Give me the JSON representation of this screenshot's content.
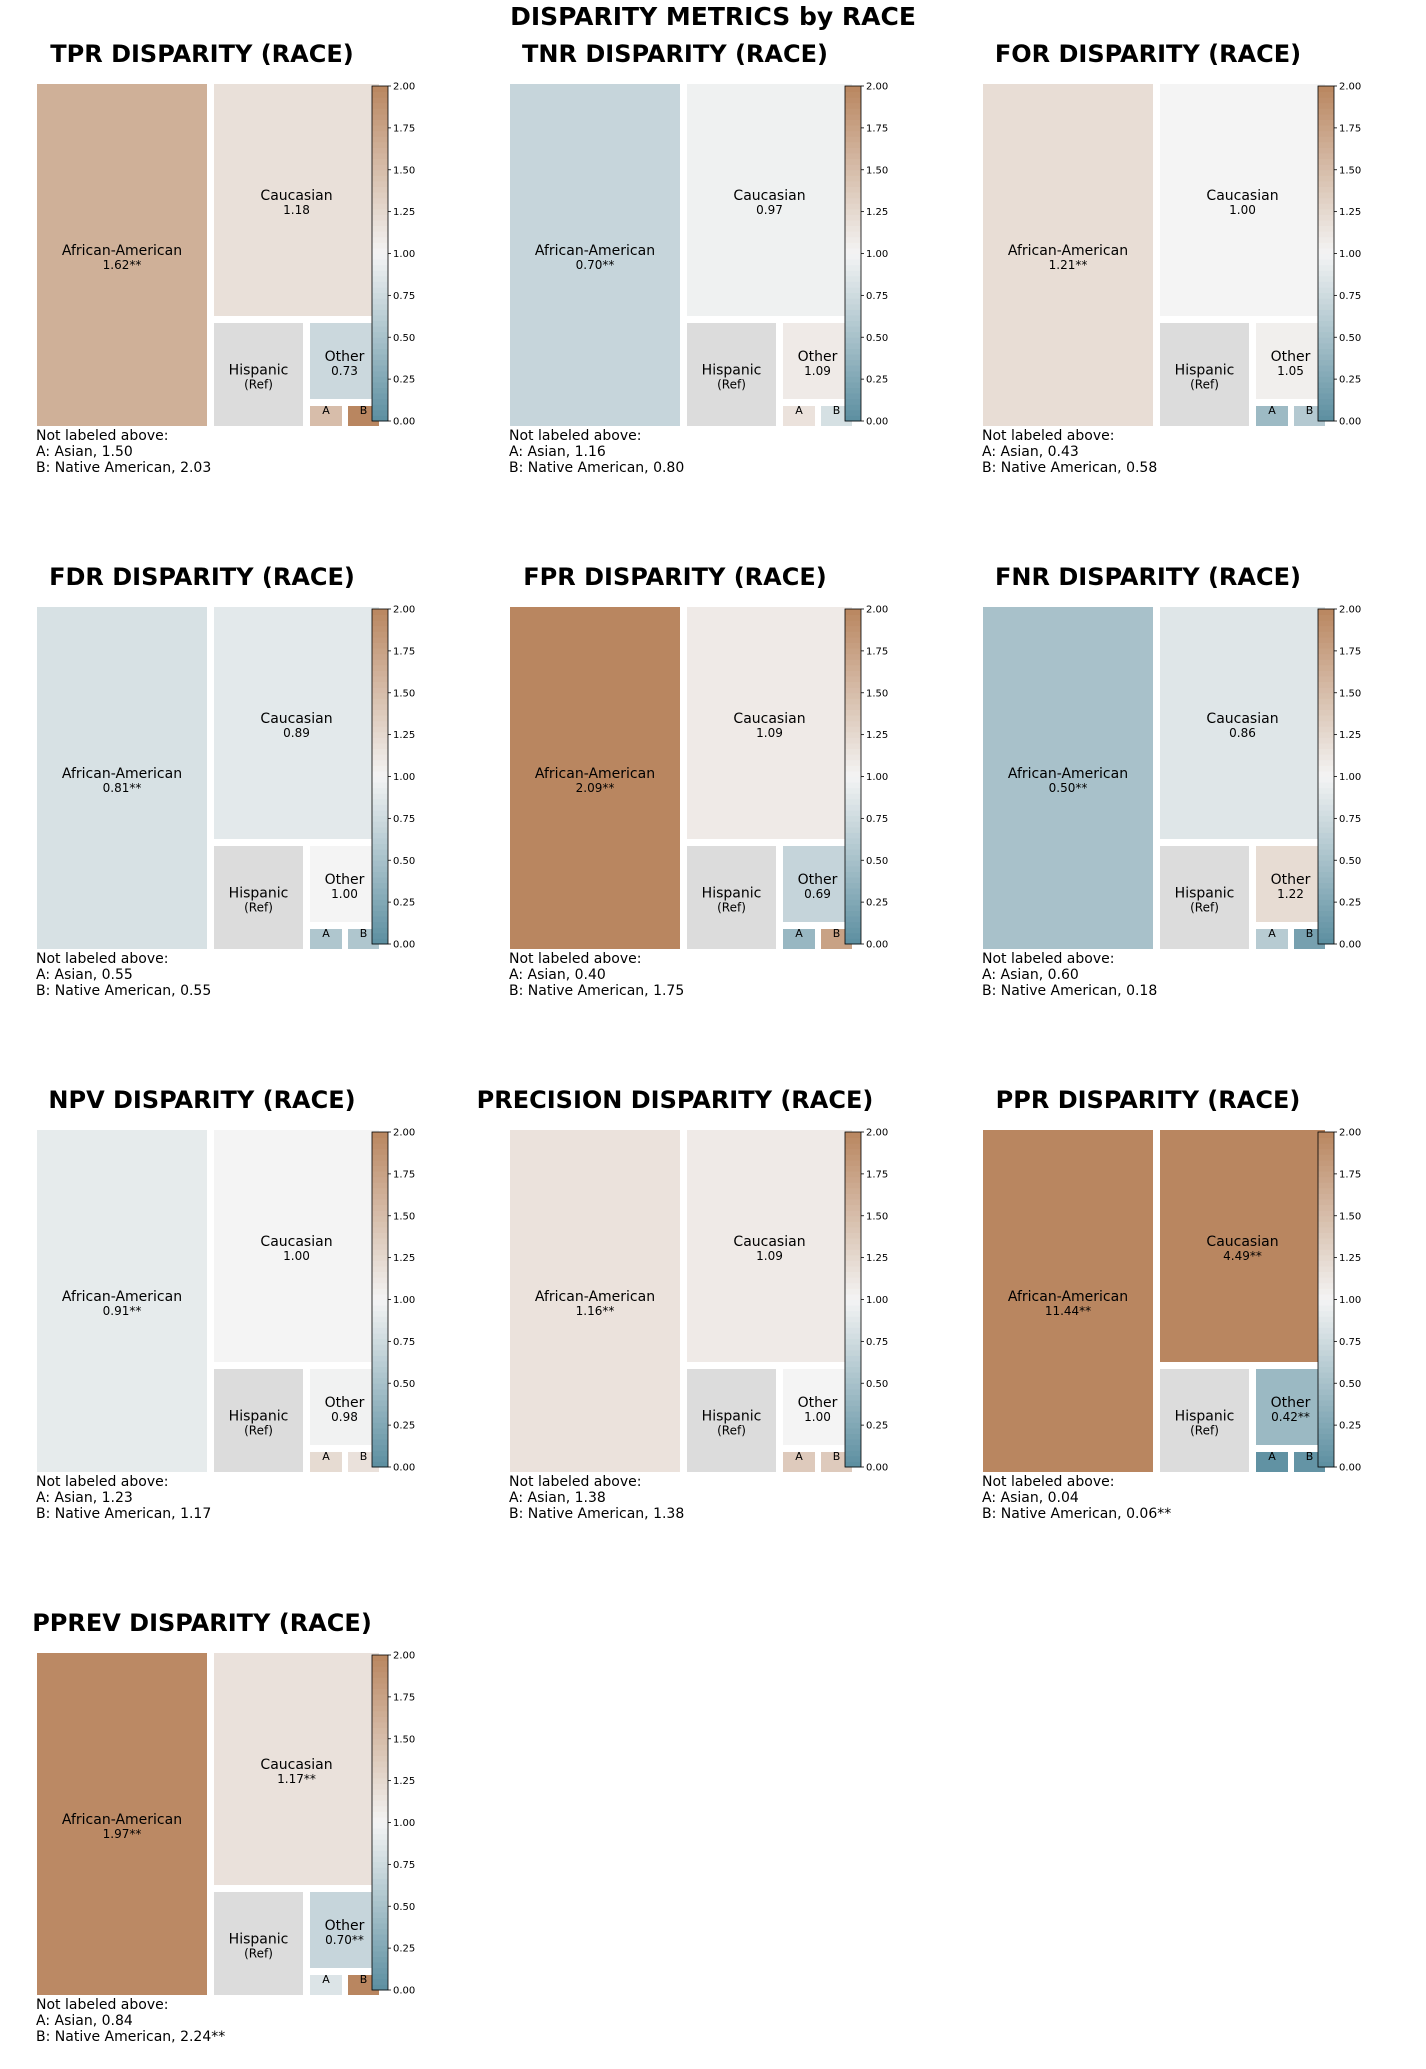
{
  "title": "DISPARITY METRICS by RACE",
  "colorbar": {
    "ticks": [
      "0.00",
      "0.25",
      "0.50",
      "0.75",
      "1.00",
      "1.25",
      "1.50",
      "1.75",
      "2.00"
    ],
    "range": [
      0,
      2
    ],
    "low_color": "#5b8ea0",
    "mid_color": "#f4f4f4",
    "high_color": "#b98660"
  },
  "colors": {
    "reference_fill": "#dcdcdc"
  },
  "chart_data": [
    {
      "type": "treemap",
      "title": "TPR DISPARITY (RACE)",
      "tiles": [
        {
          "name": "African-American",
          "value_label": "1.62**",
          "value": 1.62
        },
        {
          "name": "Caucasian",
          "value_label": "1.18",
          "value": 1.18
        },
        {
          "name": "Hispanic",
          "value_label": "(Ref)",
          "value": null
        },
        {
          "name": "Other",
          "value_label": "0.73",
          "value": 0.73
        },
        {
          "name": "A",
          "value_label": "",
          "value": 1.5
        },
        {
          "name": "B",
          "value_label": "",
          "value": 2.03
        }
      ],
      "notes": [
        "Not labeled above:",
        "A: Asian, 1.50",
        "B: Native American, 2.03"
      ]
    },
    {
      "type": "treemap",
      "title": "TNR DISPARITY (RACE)",
      "tiles": [
        {
          "name": "African-American",
          "value_label": "0.70**",
          "value": 0.7
        },
        {
          "name": "Caucasian",
          "value_label": "0.97",
          "value": 0.97
        },
        {
          "name": "Hispanic",
          "value_label": "(Ref)",
          "value": null
        },
        {
          "name": "Other",
          "value_label": "1.09",
          "value": 1.09
        },
        {
          "name": "A",
          "value_label": "",
          "value": 1.16
        },
        {
          "name": "B",
          "value_label": "",
          "value": 0.8
        }
      ],
      "notes": [
        "Not labeled above:",
        "A: Asian, 1.16",
        "B: Native American, 0.80"
      ]
    },
    {
      "type": "treemap",
      "title": "FOR DISPARITY (RACE)",
      "tiles": [
        {
          "name": "African-American",
          "value_label": "1.21**",
          "value": 1.21
        },
        {
          "name": "Caucasian",
          "value_label": "1.00",
          "value": 1.0
        },
        {
          "name": "Hispanic",
          "value_label": "(Ref)",
          "value": null
        },
        {
          "name": "Other",
          "value_label": "1.05",
          "value": 1.05
        },
        {
          "name": "A",
          "value_label": "",
          "value": 0.43
        },
        {
          "name": "B",
          "value_label": "",
          "value": 0.58
        }
      ],
      "notes": [
        "Not labeled above:",
        "A: Asian, 0.43",
        "B: Native American, 0.58"
      ]
    },
    {
      "type": "treemap",
      "title": "FDR DISPARITY (RACE)",
      "tiles": [
        {
          "name": "African-American",
          "value_label": "0.81**",
          "value": 0.81
        },
        {
          "name": "Caucasian",
          "value_label": "0.89",
          "value": 0.89
        },
        {
          "name": "Hispanic",
          "value_label": "(Ref)",
          "value": null
        },
        {
          "name": "Other",
          "value_label": "1.00",
          "value": 1.0
        },
        {
          "name": "A",
          "value_label": "",
          "value": 0.55
        },
        {
          "name": "B",
          "value_label": "",
          "value": 0.55
        }
      ],
      "notes": [
        "Not labeled above:",
        "A: Asian, 0.55",
        "B: Native American, 0.55"
      ]
    },
    {
      "type": "treemap",
      "title": "FPR DISPARITY (RACE)",
      "tiles": [
        {
          "name": "African-American",
          "value_label": "2.09**",
          "value": 2.09
        },
        {
          "name": "Caucasian",
          "value_label": "1.09",
          "value": 1.09
        },
        {
          "name": "Hispanic",
          "value_label": "(Ref)",
          "value": null
        },
        {
          "name": "Other",
          "value_label": "0.69",
          "value": 0.69
        },
        {
          "name": "A",
          "value_label": "",
          "value": 0.4
        },
        {
          "name": "B",
          "value_label": "",
          "value": 1.75
        }
      ],
      "notes": [
        "Not labeled above:",
        "A: Asian, 0.40",
        "B: Native American, 1.75"
      ]
    },
    {
      "type": "treemap",
      "title": "FNR DISPARITY (RACE)",
      "tiles": [
        {
          "name": "African-American",
          "value_label": "0.50**",
          "value": 0.5
        },
        {
          "name": "Caucasian",
          "value_label": "0.86",
          "value": 0.86
        },
        {
          "name": "Hispanic",
          "value_label": "(Ref)",
          "value": null
        },
        {
          "name": "Other",
          "value_label": "1.22",
          "value": 1.22
        },
        {
          "name": "A",
          "value_label": "",
          "value": 0.6
        },
        {
          "name": "B",
          "value_label": "",
          "value": 0.18
        }
      ],
      "notes": [
        "Not labeled above:",
        "A: Asian, 0.60",
        "B: Native American, 0.18"
      ]
    },
    {
      "type": "treemap",
      "title": "NPV DISPARITY (RACE)",
      "tiles": [
        {
          "name": "African-American",
          "value_label": "0.91**",
          "value": 0.91
        },
        {
          "name": "Caucasian",
          "value_label": "1.00",
          "value": 1.0
        },
        {
          "name": "Hispanic",
          "value_label": "(Ref)",
          "value": null
        },
        {
          "name": "Other",
          "value_label": "0.98",
          "value": 0.98
        },
        {
          "name": "A",
          "value_label": "",
          "value": 1.23
        },
        {
          "name": "B",
          "value_label": "",
          "value": 1.17
        }
      ],
      "notes": [
        "Not labeled above:",
        "A: Asian, 1.23",
        "B: Native American, 1.17"
      ]
    },
    {
      "type": "treemap",
      "title": "PRECISION DISPARITY (RACE)",
      "tiles": [
        {
          "name": "African-American",
          "value_label": "1.16**",
          "value": 1.16
        },
        {
          "name": "Caucasian",
          "value_label": "1.09",
          "value": 1.09
        },
        {
          "name": "Hispanic",
          "value_label": "(Ref)",
          "value": null
        },
        {
          "name": "Other",
          "value_label": "1.00",
          "value": 1.0
        },
        {
          "name": "A",
          "value_label": "",
          "value": 1.38
        },
        {
          "name": "B",
          "value_label": "",
          "value": 1.38
        }
      ],
      "notes": [
        "Not labeled above:",
        "A: Asian, 1.38",
        "B: Native American, 1.38"
      ]
    },
    {
      "type": "treemap",
      "title": "PPR DISPARITY (RACE)",
      "tiles": [
        {
          "name": "African-American",
          "value_label": "11.44**",
          "value": 11.44
        },
        {
          "name": "Caucasian",
          "value_label": "4.49**",
          "value": 4.49
        },
        {
          "name": "Hispanic",
          "value_label": "(Ref)",
          "value": null
        },
        {
          "name": "Other",
          "value_label": "0.42**",
          "value": 0.42
        },
        {
          "name": "A",
          "value_label": "",
          "value": 0.04
        },
        {
          "name": "B",
          "value_label": "",
          "value": 0.06
        }
      ],
      "notes": [
        "Not labeled above:",
        "A: Asian, 0.04",
        "B: Native American, 0.06**"
      ]
    },
    {
      "type": "treemap",
      "title": "PPREV DISPARITY (RACE)",
      "tiles": [
        {
          "name": "African-American",
          "value_label": "1.97**",
          "value": 1.97
        },
        {
          "name": "Caucasian",
          "value_label": "1.17**",
          "value": 1.17
        },
        {
          "name": "Hispanic",
          "value_label": "(Ref)",
          "value": null
        },
        {
          "name": "Other",
          "value_label": "0.70**",
          "value": 0.7
        },
        {
          "name": "A",
          "value_label": "",
          "value": 0.84
        },
        {
          "name": "B",
          "value_label": "",
          "value": 2.24
        }
      ],
      "notes": [
        "Not labeled above:",
        "A: Asian, 0.84",
        "B: Native American, 2.24**"
      ]
    }
  ]
}
